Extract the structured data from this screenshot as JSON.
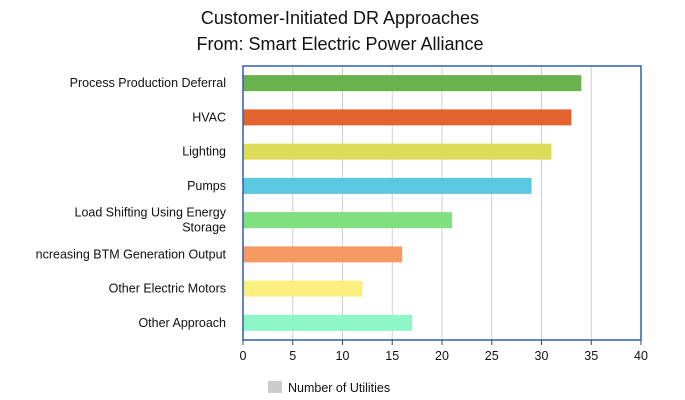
{
  "chart_data": {
    "type": "bar",
    "orientation": "horizontal",
    "title_lines": [
      "Customer-Initiated DR Approaches",
      "From: Smart Electric Power Alliance"
    ],
    "categories": [
      [
        "Process Production Deferral"
      ],
      [
        "HVAC"
      ],
      [
        "Lighting"
      ],
      [
        "Pumps"
      ],
      [
        "Load Shifting Using Energy",
        "Storage"
      ],
      [
        "ncreasing BTM Generation Output"
      ],
      [
        "Other Electric Motors"
      ],
      [
        "Other Approach"
      ]
    ],
    "series": [
      {
        "name": "Number of Utilities",
        "values": [
          34,
          33,
          31,
          29,
          21,
          16,
          12,
          17
        ]
      }
    ],
    "bar_colors": [
      "#6ab04c",
      "#e06330",
      "#dcdc56",
      "#5bc8e1",
      "#7ee07e",
      "#f59a62",
      "#fbef7f",
      "#8ff7c7"
    ],
    "legend_color": "#cccccc",
    "xlim": [
      0,
      40
    ],
    "xticks": [
      0,
      5,
      10,
      15,
      20,
      25,
      30,
      35,
      40
    ],
    "grid": true,
    "legend_position": "bottom"
  }
}
